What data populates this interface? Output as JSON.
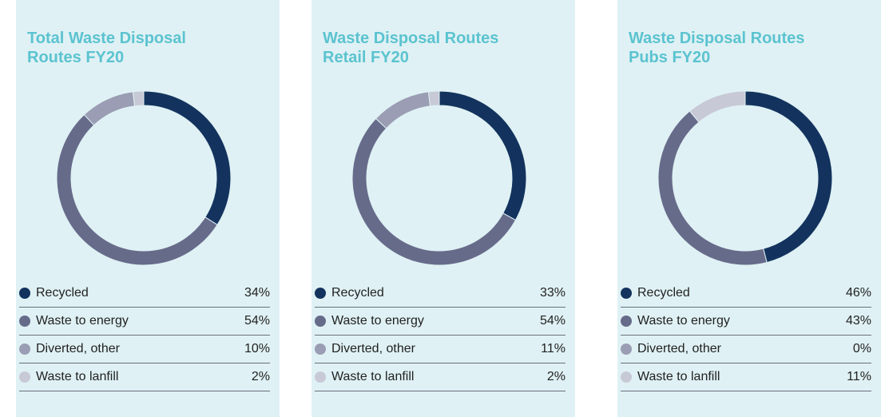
{
  "chart_data": [
    {
      "type": "pie",
      "title": "Total Waste Disposal Routes FY20",
      "categories": [
        "Recycled",
        "Waste to energy",
        "Diverted, other",
        "Waste to lanfill"
      ],
      "values": [
        34,
        54,
        10,
        2
      ],
      "value_labels": [
        "34%",
        "54%",
        "10%",
        "2%"
      ],
      "colors": [
        "#13335e",
        "#676b8a",
        "#9a9db3",
        "#c8c9d6"
      ]
    },
    {
      "type": "pie",
      "title": "Waste Disposal Routes Retail FY20",
      "categories": [
        "Recycled",
        "Waste to energy",
        "Diverted, other",
        "Waste to lanfill"
      ],
      "values": [
        33,
        54,
        11,
        2
      ],
      "value_labels": [
        "33%",
        "54%",
        "11%",
        "2%"
      ],
      "colors": [
        "#13335e",
        "#676b8a",
        "#9a9db3",
        "#c8c9d6"
      ]
    },
    {
      "type": "pie",
      "title": "Waste Disposal Routes Pubs FY20",
      "categories": [
        "Recycled",
        "Waste to energy",
        "Diverted, other",
        "Waste to lanfill"
      ],
      "values": [
        46,
        43,
        0,
        11
      ],
      "value_labels": [
        "46%",
        "43%",
        "0%",
        "11%"
      ],
      "colors": [
        "#13335e",
        "#676b8a",
        "#9a9db3",
        "#c8c9d6"
      ]
    }
  ]
}
